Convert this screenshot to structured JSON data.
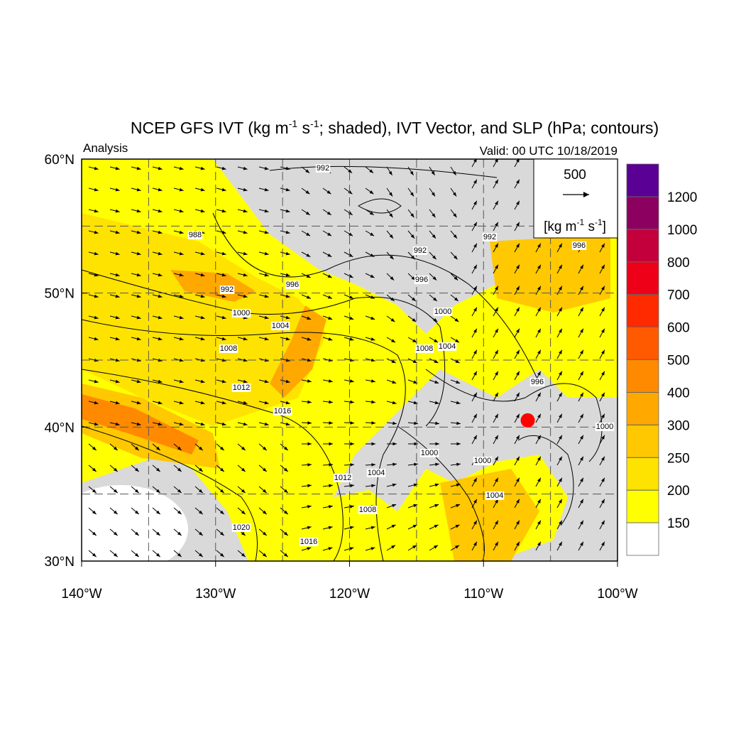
{
  "header": {
    "title": [
      "NCEP GFS IVT (kg m",
      "-1",
      " s",
      "-1",
      "; shaded), IVT Vector, and SLP (hPa; contours)"
    ],
    "subtitle": "Analysis",
    "valid": "Valid: 00 UTC 10/18/2019"
  },
  "map": {
    "lon_range": [
      -140,
      -100
    ],
    "lat_range": [
      30,
      60
    ],
    "lat_labels": [
      {
        "value": 30,
        "label": "30°N"
      },
      {
        "value": 40,
        "label": "40°N"
      },
      {
        "value": 50,
        "label": "50°N"
      },
      {
        "value": 60,
        "label": "60°N"
      }
    ],
    "lon_labels": [
      {
        "value": -140,
        "label": "140°W"
      },
      {
        "value": -130,
        "label": "130°W"
      },
      {
        "value": -120,
        "label": "120°W"
      },
      {
        "value": -110,
        "label": "110°W"
      },
      {
        "value": -100,
        "label": "100°W"
      }
    ],
    "grid_lats": [
      35,
      40,
      45,
      50,
      55
    ],
    "grid_lons": [
      -135,
      -130,
      -125,
      -120,
      -115,
      -110,
      -105
    ],
    "contour_labels": [
      992,
      988,
      992,
      996,
      1000,
      1004,
      1008,
      1012,
      1016,
      1020,
      1016,
      1012,
      1008,
      1004,
      1000,
      1000,
      1004,
      992,
      996,
      1000,
      1004,
      1008,
      992,
      996,
      996,
      1000
    ],
    "marker": {
      "lon": -106.7,
      "lat": 40.5,
      "color": "#ff0000"
    }
  },
  "reference_vector": {
    "value": 500,
    "unit": [
      "[kg m",
      "-1",
      " s",
      "-1",
      "]"
    ]
  },
  "colorbar": {
    "levels": [
      150,
      200,
      250,
      300,
      400,
      500,
      600,
      700,
      800,
      1000,
      1200
    ],
    "colors": [
      "#ffffff",
      "#ffff00",
      "#ffe300",
      "#ffc800",
      "#ffa800",
      "#ff8a00",
      "#ff5a00",
      "#ff2a00",
      "#ee0018",
      "#c4003c",
      "#8c0060",
      "#5a0094"
    ]
  }
}
